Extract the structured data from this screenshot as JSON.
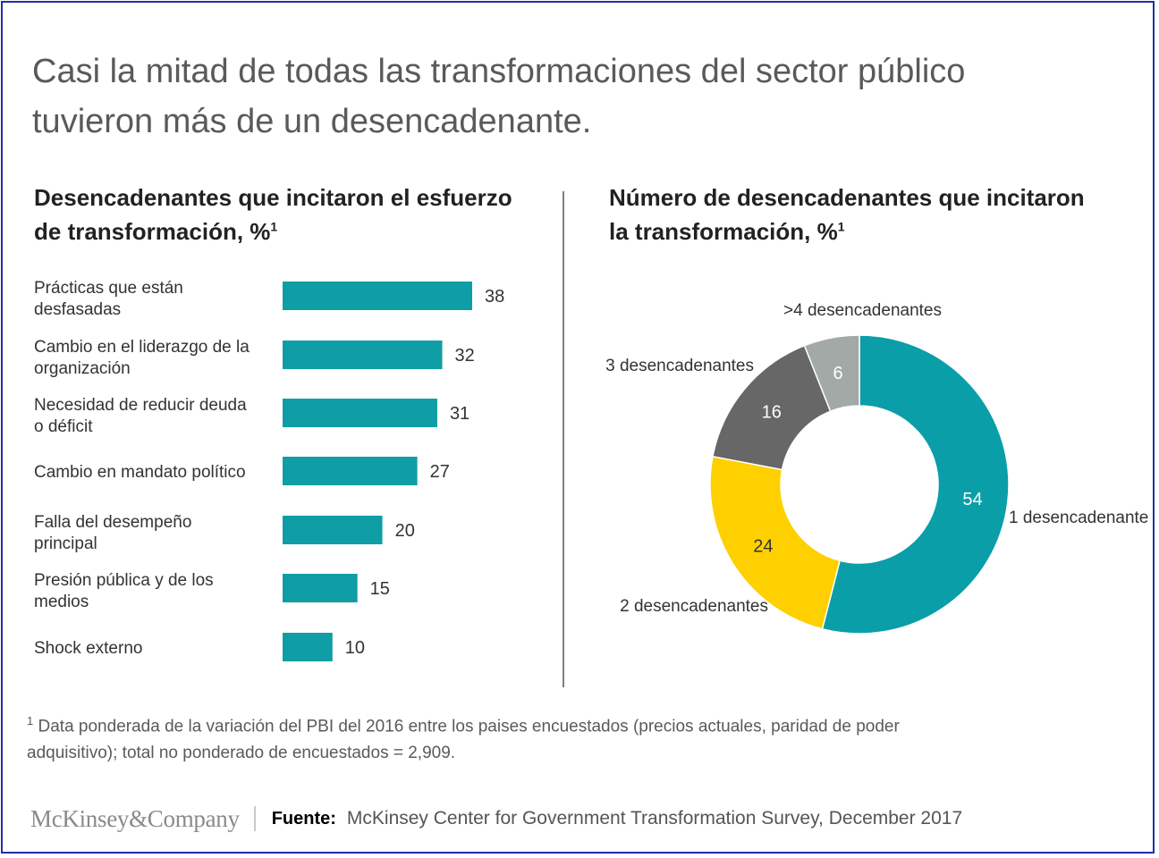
{
  "header": {
    "title_line1": "Casi la mitad de todas las transformaciones del sector público",
    "title_line2": "tuvieron más de un desencadenante."
  },
  "left_panel": {
    "title_line1": "Desencadenantes que incitaron el esfuerzo",
    "title_line2": "de transformación, %",
    "title_sup": "1"
  },
  "right_panel": {
    "title_line1": "Número de desencadenantes que incitaron",
    "title_line2": "la transformación, %",
    "title_sup": "1"
  },
  "colors": {
    "bar": "#0f9ea6",
    "donut": [
      "#0a9ea8",
      "#ffd000",
      "#676767",
      "#a3a9a6"
    ],
    "text": "#333333"
  },
  "chart_data": [
    {
      "type": "bar",
      "orientation": "horizontal",
      "categories": [
        [
          "Prácticas que están",
          "desfasadas"
        ],
        [
          "Cambio en el liderazgo de la",
          "organización"
        ],
        [
          "Necesidad de reducir deuda",
          "o déficit"
        ],
        [
          "Cambio en mandato político"
        ],
        [
          "Falla del desempeño",
          "principal"
        ],
        [
          "Presión pública y de los",
          "medios"
        ],
        [
          "Shock externo"
        ]
      ],
      "values": [
        38,
        32,
        31,
        27,
        20,
        15,
        10
      ],
      "value_labels": [
        "38",
        "32",
        "31",
        "27",
        "20",
        "15",
        "10"
      ]
    },
    {
      "type": "pie",
      "variant": "donut",
      "slices": [
        {
          "label": "1 desencadenante",
          "value": 54,
          "value_label": "54"
        },
        {
          "label": "2 desencadenantes",
          "value": 24,
          "value_label": "24"
        },
        {
          "label": "3 desencadenantes",
          "value": 16,
          "value_label": "16"
        },
        {
          "label": ">4 desencadenantes",
          "value": 6,
          "value_label": "6"
        }
      ]
    }
  ],
  "footnote": {
    "marker": "1",
    "text": "Data ponderada de la variación del PBI del 2016 entre los paises encuestados (precios actuales, paridad de poder",
    "text_line2": "adquisitivo); total no ponderado de encuestados = 2,909."
  },
  "footer": {
    "logo": "McKinsey&Company",
    "source_label": "Fuente:",
    "source_text": "McKinsey Center for Government Transformation Survey, December 2017"
  }
}
